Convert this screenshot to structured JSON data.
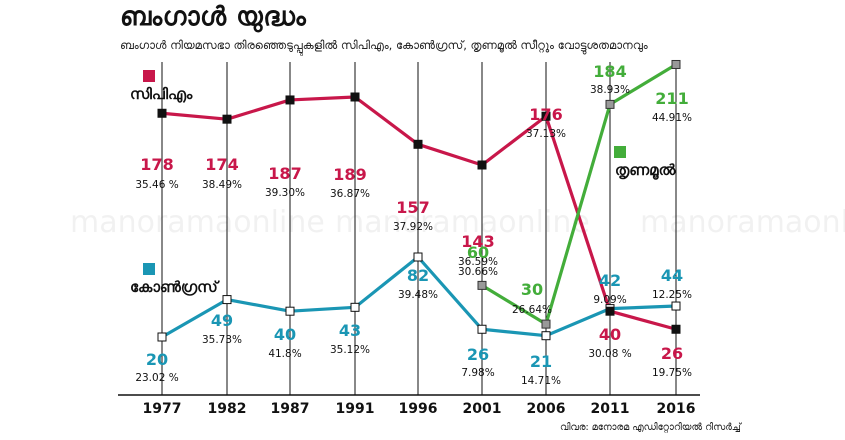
{
  "title": "ബംഗാൾ യുദ്ധം",
  "subtitle": "ബംഗാൾ നിയമസഭാ തിരഞ്ഞെടുപ്പുകളിൽ സിപിഎം, കോൺഗ്രസ്, തൃണമൂൽ സീറ്റും വോട്ടുശതമാനവും",
  "credit": "വിവര: മനോരമ എഡിറ്റോറിയൽ റിസർച്ച്",
  "watermark": "manoramaonline",
  "chart_data": {
    "type": "line",
    "x": [
      "1977",
      "1982",
      "1987",
      "1991",
      "1996",
      "2001",
      "2006",
      "2011",
      "2016"
    ],
    "series": [
      {
        "name": "സിപിഎം",
        "color": "#c8174a",
        "marker": "#111111",
        "seats": [
          178,
          174,
          187,
          189,
          157,
          143,
          176,
          40,
          26
        ],
        "vote_share_labels": [
          "35.46 %",
          "38.49%",
          "39.30%",
          "36.87%",
          "37.92%",
          "36.59%",
          "37.13%",
          "30.08 %",
          "19.75%"
        ]
      },
      {
        "name": "കോൺഗ്രസ്",
        "color": "#1a96b4",
        "marker": "#ffffff",
        "seats": [
          20,
          49,
          40,
          43,
          82,
          26,
          21,
          42,
          44
        ],
        "vote_share_labels": [
          "23.02 %",
          "35.73%",
          "41.8%",
          "35.12%",
          "39.48%",
          "7.98%",
          "14.71%",
          "9.09%",
          "12.25%"
        ]
      },
      {
        "name": "തൃണമൂൽ",
        "color": "#43ad3a",
        "marker": "#999999",
        "x": [
          "2001",
          "2006",
          "2011",
          "2016"
        ],
        "seats": [
          60,
          30,
          184,
          211
        ],
        "vote_share_labels": [
          "30.66%",
          "26.64%",
          "38.93%",
          "44.91%"
        ]
      }
    ]
  }
}
